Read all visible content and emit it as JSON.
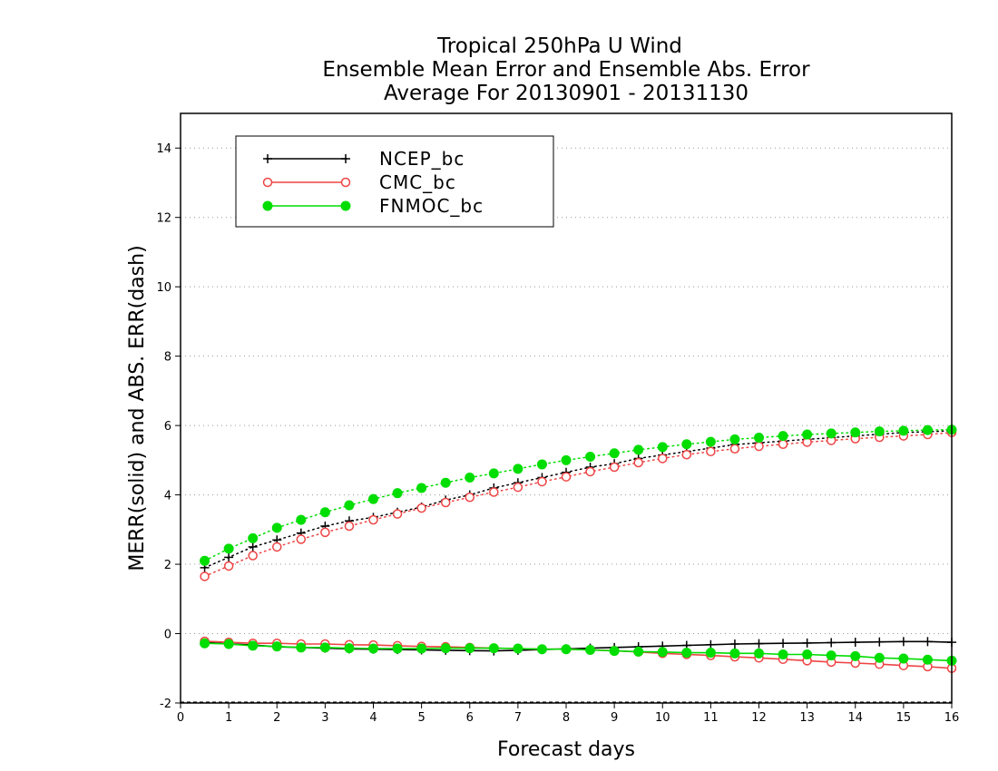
{
  "chart_data": {
    "type": "line",
    "title_lines": [
      "Tropical 250hPa U Wind",
      "Ensemble Mean Error and Ensemble Abs. Error",
      "Average For 20130901 - 20131130"
    ],
    "xlabel": "Forecast days",
    "ylabel": "MERR(solid) and ABS. ERR(dash)",
    "xlim": [
      0,
      16
    ],
    "ylim": [
      -2,
      15
    ],
    "x_ticks": [
      0,
      1,
      2,
      3,
      4,
      5,
      6,
      7,
      8,
      9,
      10,
      11,
      12,
      13,
      14,
      15,
      16
    ],
    "x_tick_labels": [
      "0",
      "1",
      "2",
      "3",
      "4",
      "5",
      "6",
      "7",
      "8",
      "9",
      "10",
      "11",
      "12",
      "13",
      "14",
      "15",
      "16"
    ],
    "y_ticks": [
      -2,
      0,
      2,
      4,
      6,
      8,
      10,
      12,
      14
    ],
    "y_tick_labels": [
      "-2",
      "0",
      "2",
      "4",
      "6",
      "8",
      "10",
      "12",
      "14"
    ],
    "grid": "horizontal dotted",
    "legend_position": "top-left",
    "x": [
      0.5,
      1,
      1.5,
      2,
      2.5,
      3,
      3.5,
      4,
      4.5,
      5,
      5.5,
      6,
      6.5,
      7,
      7.5,
      8,
      8.5,
      9,
      9.5,
      10,
      10.5,
      11,
      11.5,
      12,
      12.5,
      13,
      13.5,
      14,
      14.5,
      15,
      15.5,
      16
    ],
    "series": [
      {
        "name": "NCEP_bc",
        "color": "#000000",
        "marker": "plus",
        "mean_error": [
          -0.25,
          -0.3,
          -0.33,
          -0.38,
          -0.4,
          -0.42,
          -0.44,
          -0.45,
          -0.46,
          -0.47,
          -0.48,
          -0.49,
          -0.5,
          -0.48,
          -0.46,
          -0.44,
          -0.42,
          -0.4,
          -0.38,
          -0.36,
          -0.34,
          -0.32,
          -0.3,
          -0.29,
          -0.28,
          -0.27,
          -0.26,
          -0.25,
          -0.24,
          -0.23,
          -0.23,
          -0.25
        ],
        "abs_error": [
          1.9,
          2.2,
          2.5,
          2.7,
          2.9,
          3.1,
          3.25,
          3.35,
          3.5,
          3.65,
          3.85,
          4.0,
          4.2,
          4.35,
          4.5,
          4.65,
          4.8,
          4.9,
          5.05,
          5.15,
          5.25,
          5.35,
          5.45,
          5.5,
          5.55,
          5.6,
          5.65,
          5.7,
          5.75,
          5.8,
          5.82,
          5.85
        ]
      },
      {
        "name": "CMC_bc",
        "color": "#ee4444",
        "marker": "open-circle",
        "mean_error": [
          -0.22,
          -0.25,
          -0.28,
          -0.28,
          -0.3,
          -0.3,
          -0.32,
          -0.33,
          -0.35,
          -0.37,
          -0.38,
          -0.4,
          -0.42,
          -0.43,
          -0.45,
          -0.45,
          -0.47,
          -0.49,
          -0.53,
          -0.57,
          -0.6,
          -0.63,
          -0.67,
          -0.7,
          -0.74,
          -0.78,
          -0.82,
          -0.85,
          -0.88,
          -0.92,
          -0.95,
          -1.0
        ],
        "abs_error": [
          1.65,
          1.95,
          2.25,
          2.5,
          2.72,
          2.92,
          3.1,
          3.28,
          3.45,
          3.62,
          3.78,
          3.93,
          4.08,
          4.22,
          4.38,
          4.52,
          4.67,
          4.8,
          4.93,
          5.05,
          5.16,
          5.25,
          5.33,
          5.4,
          5.46,
          5.52,
          5.57,
          5.62,
          5.66,
          5.7,
          5.74,
          5.8
        ]
      },
      {
        "name": "FNMOC_bc",
        "color": "#00dd00",
        "marker": "filled-circle",
        "mean_error": [
          -0.28,
          -0.3,
          -0.35,
          -0.37,
          -0.4,
          -0.4,
          -0.42,
          -0.43,
          -0.43,
          -0.43,
          -0.42,
          -0.42,
          -0.42,
          -0.43,
          -0.45,
          -0.45,
          -0.47,
          -0.5,
          -0.52,
          -0.53,
          -0.55,
          -0.55,
          -0.57,
          -0.57,
          -0.6,
          -0.6,
          -0.63,
          -0.65,
          -0.7,
          -0.72,
          -0.75,
          -0.78
        ],
        "abs_error": [
          2.1,
          2.45,
          2.75,
          3.05,
          3.28,
          3.5,
          3.7,
          3.88,
          4.05,
          4.2,
          4.35,
          4.5,
          4.62,
          4.75,
          4.88,
          5.0,
          5.1,
          5.2,
          5.3,
          5.38,
          5.46,
          5.53,
          5.6,
          5.65,
          5.7,
          5.74,
          5.77,
          5.8,
          5.83,
          5.85,
          5.87,
          5.88
        ]
      }
    ]
  }
}
